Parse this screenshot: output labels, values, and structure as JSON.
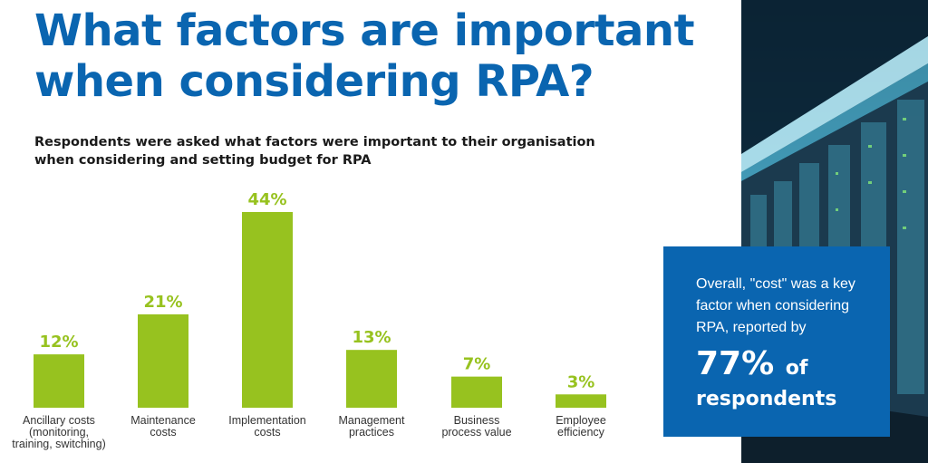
{
  "header": {
    "title_line1": "What factors are important",
    "title_line2": "when considering RPA?",
    "subtitle_line1": "Respondents were asked what factors were important to their organisation",
    "subtitle_line2": "when considering and setting budget for RPA"
  },
  "chart_data": {
    "type": "bar",
    "title": "",
    "xlabel": "",
    "ylabel": "",
    "ylim": [
      0,
      44
    ],
    "grid": false,
    "categories": [
      [
        "Ancillary costs",
        "(monitoring,",
        "training, switching)"
      ],
      [
        "Maintenance",
        "costs"
      ],
      [
        "Implementation",
        "costs"
      ],
      [
        "Management",
        "practices"
      ],
      [
        "Business",
        "process value"
      ],
      [
        "Employee",
        "efficiency"
      ]
    ],
    "values": [
      12,
      21,
      44,
      13,
      7,
      3
    ],
    "value_labels": [
      "12%",
      "21%",
      "44%",
      "13%",
      "7%",
      "3%"
    ],
    "bar_color": "#97c21f"
  },
  "callout": {
    "text_line1": "Overall, \"cost\" was a key",
    "text_line2": "factor when considering",
    "text_line3": "RPA, reported by",
    "big_value": "77%",
    "big_of": "of",
    "big_respondents": "respondents",
    "background": "#0a65b0"
  },
  "photo": {
    "icon": "server-room-photo"
  }
}
